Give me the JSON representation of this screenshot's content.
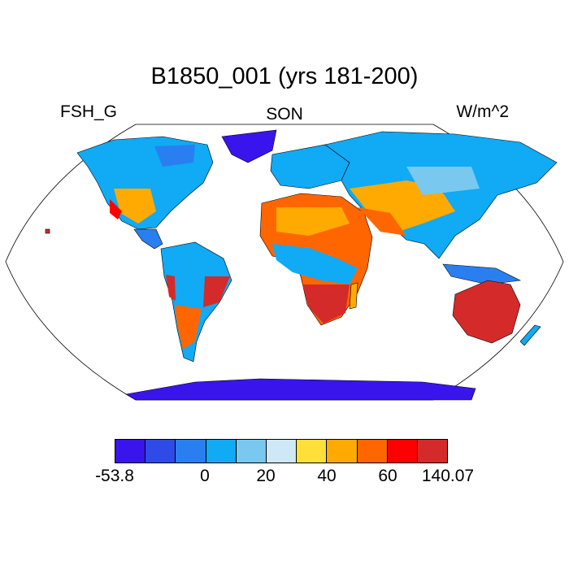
{
  "title": "B1850_001 (yrs 181-200)",
  "variable": "FSH_G",
  "season": "SON",
  "units": "W/m^2",
  "colorbar": {
    "colors": [
      "#3a14ec",
      "#2e4be8",
      "#2a7ff0",
      "#10aaf5",
      "#78c8f0",
      "#cfe8f8",
      "#ffe039",
      "#ffaa00",
      "#ff6600",
      "#ff0000",
      "#d42a2a"
    ],
    "labels": [
      "-53.8",
      "0",
      "20",
      "40",
      "60",
      "140.07"
    ]
  }
}
